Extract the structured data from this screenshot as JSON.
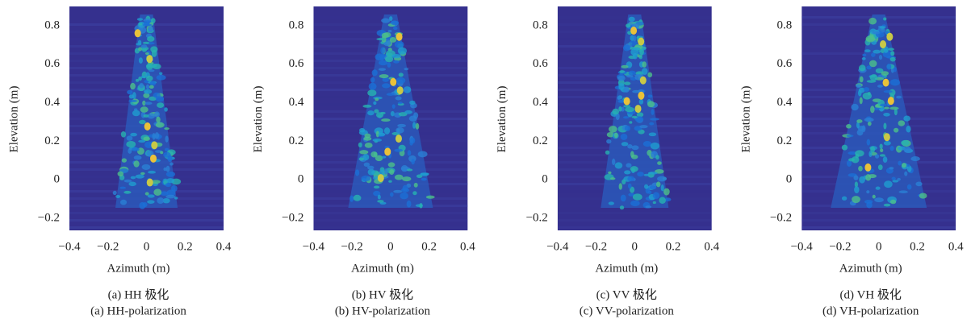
{
  "panels": [
    {
      "x_label": "Azimuth (m)",
      "y_label": "Elevation (m)",
      "x_ticks": [
        "−0.4",
        "−0.2",
        "0",
        "0.2",
        "0.4"
      ],
      "y_ticks": [
        "−0.2",
        "0",
        "0.2",
        "0.4",
        "0.6",
        "0.8"
      ],
      "caption_cn": "(a) HH 极化",
      "caption_en": "(a) HH-polarization"
    },
    {
      "x_label": "Azimuth (m)",
      "y_label": "Elevation (m)",
      "x_ticks": [
        "−0.4",
        "−0.2",
        "0",
        "0.2",
        "0.4"
      ],
      "y_ticks": [
        "−0.2",
        "0",
        "0.2",
        "0.4",
        "0.6",
        "0.8"
      ],
      "caption_cn": "(b) HV 极化",
      "caption_en": "(b) HV-polarization"
    },
    {
      "x_label": "Azimuth (m)",
      "y_label": "Elevation (m)",
      "x_ticks": [
        "−0.4",
        "−0.2",
        "0",
        "0.2",
        "0.4"
      ],
      "y_ticks": [
        "−0.2",
        "0",
        "0.2",
        "0.4",
        "0.6",
        "0.8"
      ],
      "caption_cn": "(c) VV 极化",
      "caption_en": "(c) VV-polarization"
    },
    {
      "x_label": "Azimuth (m)",
      "y_label": "Elevation (m)",
      "x_ticks": [
        "−0.4",
        "−0.2",
        "0",
        "0.2",
        "0.4"
      ],
      "y_ticks": [
        "−0.2",
        "0",
        "0.2",
        "0.4",
        "0.6",
        "0.8"
      ],
      "caption_cn": "(d) VH 极化",
      "caption_en": "(d) VH-polarization"
    }
  ]
}
